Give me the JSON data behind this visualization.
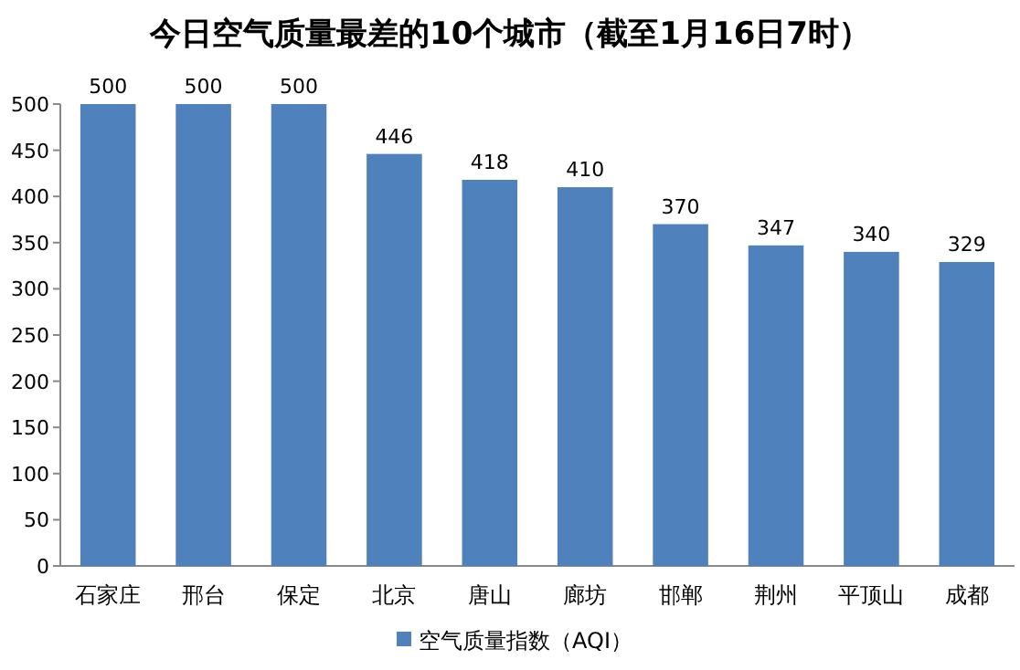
{
  "chart_data": {
    "type": "bar",
    "title": "今日空气质量最差的10个城市（截至1月16日7时）",
    "categories": [
      "石家庄",
      "邢台",
      "保定",
      "北京",
      "唐山",
      "廊坊",
      "邯郸",
      "荆州",
      "平顶山",
      "成都"
    ],
    "series": [
      {
        "name": "空气质量指数（AQI）",
        "color": "#4f81bd",
        "values": [
          500,
          500,
          500,
          446,
          418,
          410,
          370,
          347,
          340,
          329
        ]
      }
    ],
    "ylim": [
      0,
      500
    ],
    "yticks": [
      0,
      50,
      100,
      150,
      200,
      250,
      300,
      350,
      400,
      450,
      500
    ],
    "data_labels": true,
    "legend": "bottom",
    "grid": false
  }
}
